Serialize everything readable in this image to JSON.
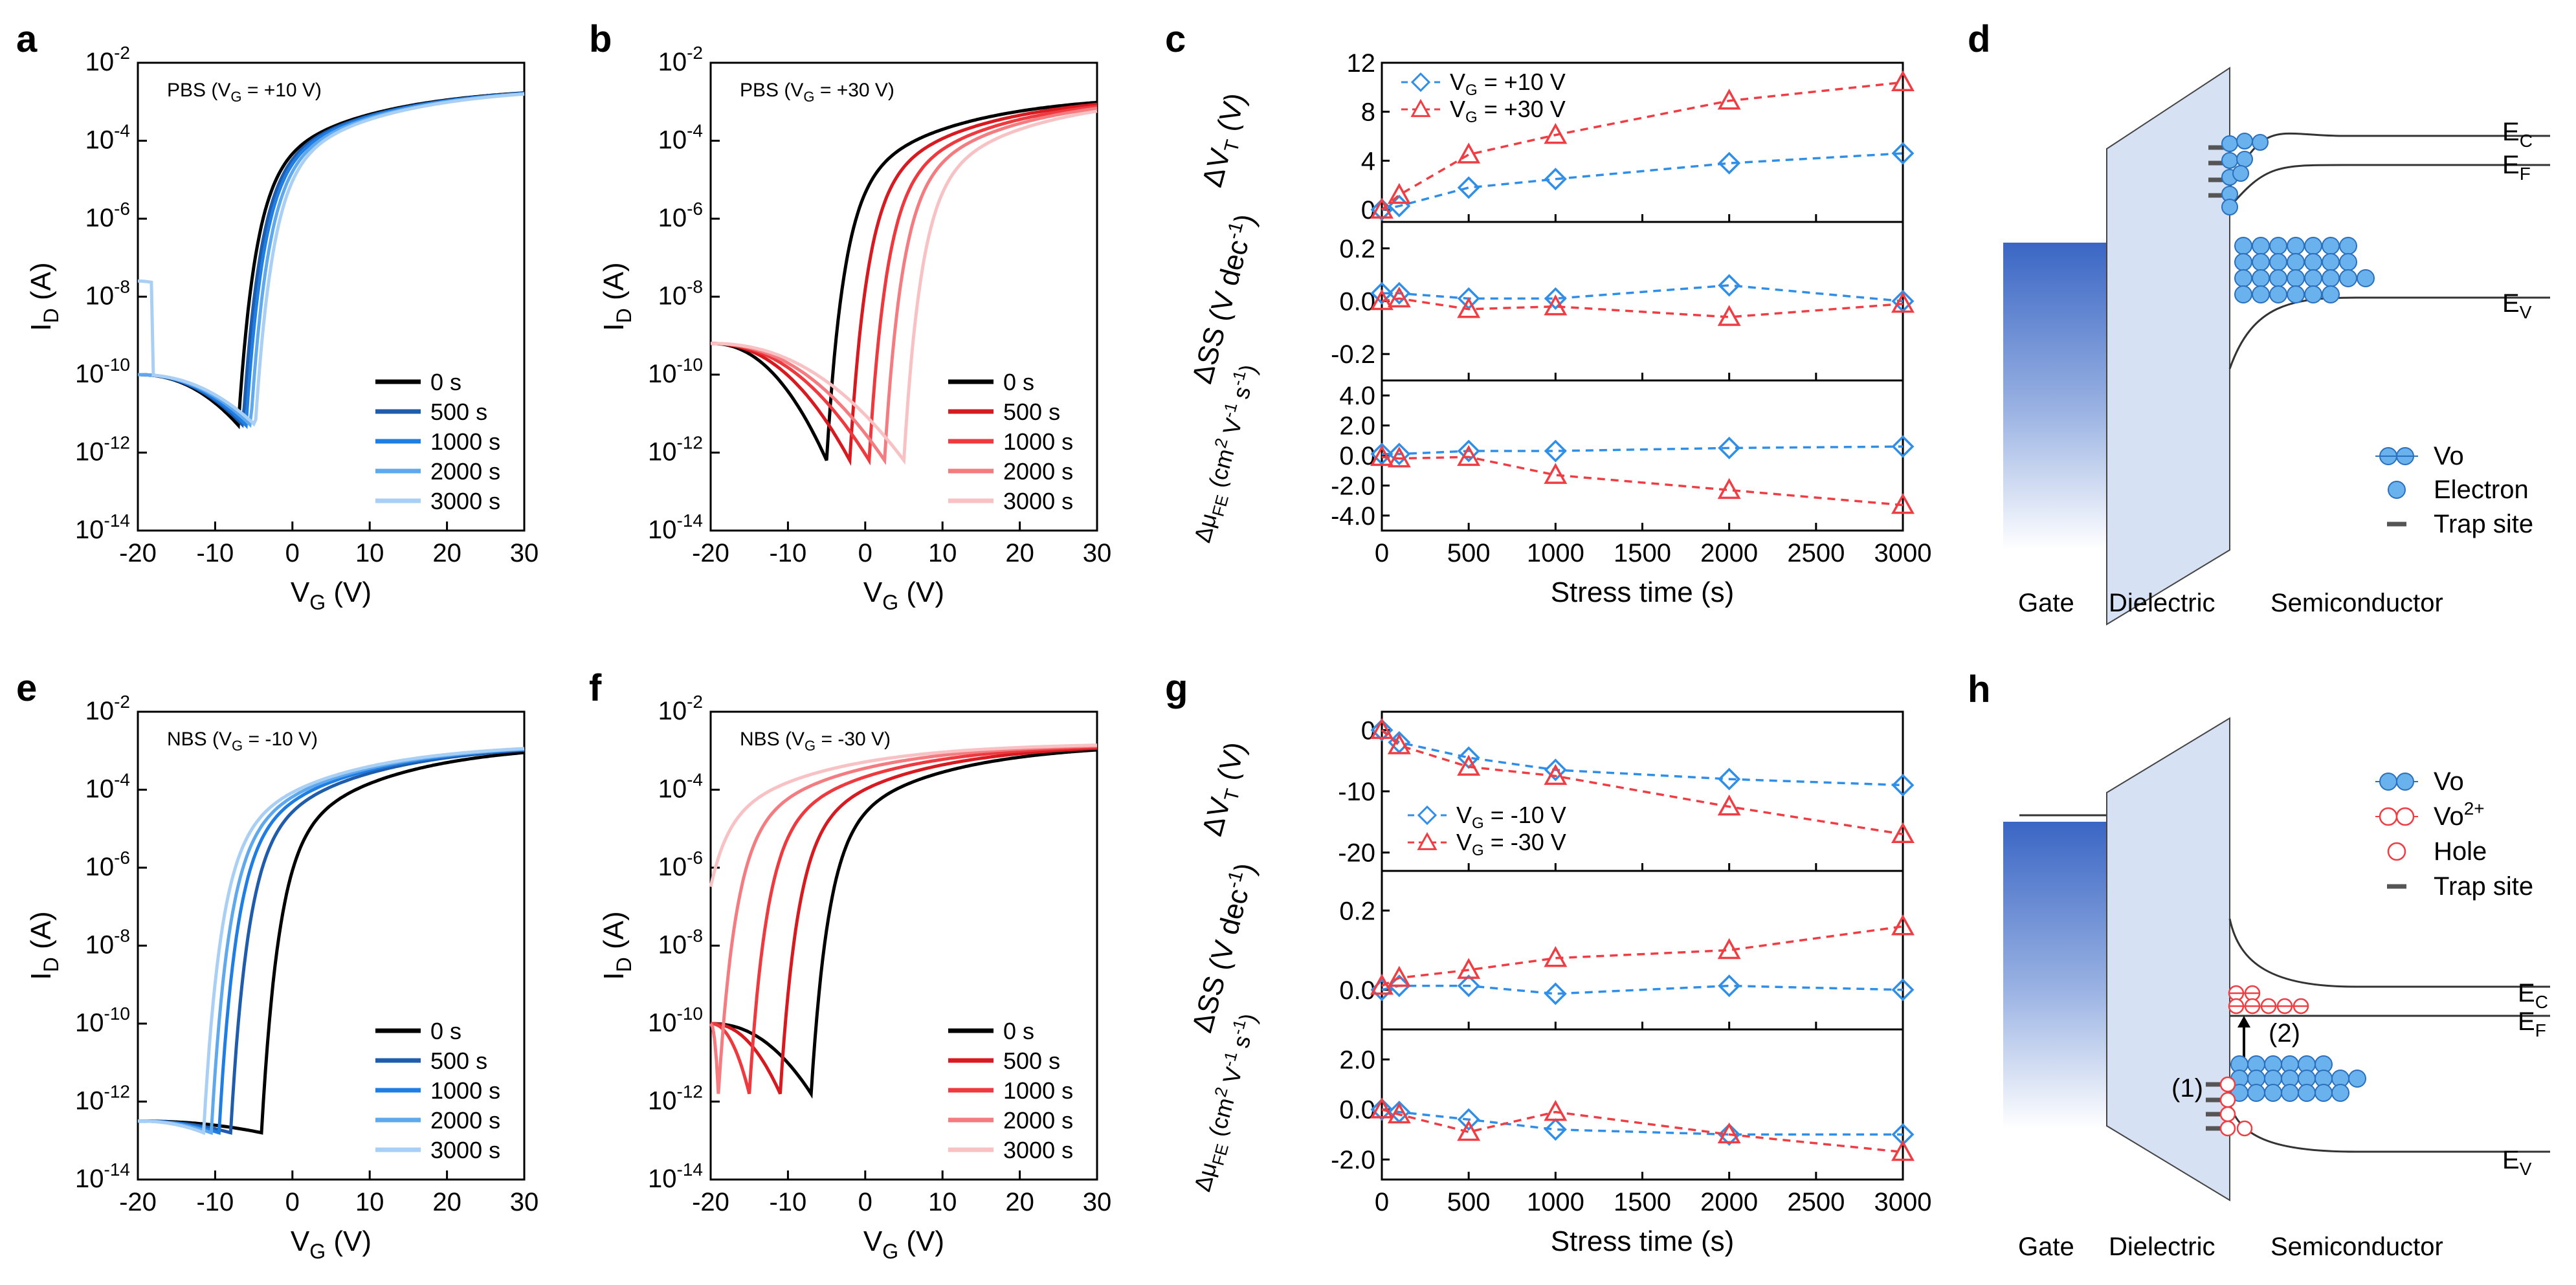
{
  "colors": {
    "black": "#000000",
    "blue_series": [
      "#1f5cab",
      "#1e7ee4",
      "#5ea8ee",
      "#a9cff5"
    ],
    "red_series": [
      "#d71920",
      "#ee3a3f",
      "#f47c80",
      "#f8c1c3"
    ],
    "blue_marker": "#2f8fe8",
    "red_marker": "#ef3d43",
    "dielectric": "#d6e1f4",
    "electron": "#6ab2ee",
    "gate_dark": "#3a66c4"
  },
  "chart_data": [
    {
      "id": "a",
      "letter": "a",
      "type": "line",
      "title": "PBS (VG = +10 V)",
      "annotation": {
        "pre": "PBS (V",
        "sub": "G",
        "post": " = +10 V)"
      },
      "xlabel": {
        "main": "V",
        "sub": "G",
        "suffix": " (V)"
      },
      "ylabel": {
        "main": "I",
        "sub": "D",
        "suffix": " (A)"
      },
      "yscale": "log",
      "xlim": [
        -20,
        30
      ],
      "ylim": [
        -14,
        -2
      ],
      "xticks": [
        "-20",
        "-10",
        "0",
        "10",
        "20",
        "30"
      ],
      "xtick_values": [
        -20,
        -10,
        0,
        10,
        20,
        30
      ],
      "yticks_base": "10",
      "yticks_exp": [
        "-2",
        "-4",
        "-6",
        "-8",
        "-10",
        "-12",
        "-14"
      ],
      "ytick_values": [
        -2,
        -4,
        -6,
        -8,
        -10,
        -12,
        -14
      ],
      "palette": "blue",
      "series": [
        {
          "name": "0 s",
          "vmin": -7,
          "shift": 0
        },
        {
          "name": "500 s",
          "vmin": -6.4,
          "shift": 0.6
        },
        {
          "name": "1000 s",
          "vmin": -6,
          "shift": 1.0
        },
        {
          "name": "2000 s",
          "vmin": -5.4,
          "shift": 1.6
        },
        {
          "name": "3000 s",
          "vmin": -4.8,
          "shift": 2.2
        }
      ],
      "curve": {
        "ymin": -11.3,
        "ymax": -2.6,
        "y_left": -10.0,
        "y_left2": -8.0
      }
    },
    {
      "id": "b",
      "letter": "b",
      "type": "line",
      "title": "PBS (VG = +30 V)",
      "annotation": {
        "pre": "PBS (V",
        "sub": "G",
        "post": " = +30 V)"
      },
      "xlabel": {
        "main": "V",
        "sub": "G",
        "suffix": " (V)"
      },
      "ylabel": {
        "main": "I",
        "sub": "D",
        "suffix": " (A)"
      },
      "yscale": "log",
      "xlim": [
        -20,
        30
      ],
      "ylim": [
        -14,
        -2
      ],
      "xticks": [
        "-20",
        "-10",
        "0",
        "10",
        "20",
        "30"
      ],
      "xtick_values": [
        -20,
        -10,
        0,
        10,
        20,
        30
      ],
      "yticks_base": "10",
      "yticks_exp": [
        "-2",
        "-4",
        "-6",
        "-8",
        "-10",
        "-12",
        "-14"
      ],
      "ytick_values": [
        -2,
        -4,
        -6,
        -8,
        -10,
        -12,
        -14
      ],
      "palette": "red",
      "series": [
        {
          "name": "0 s",
          "vmin": -5,
          "shift": 0
        },
        {
          "name": "500 s",
          "vmin": -2,
          "shift": 3
        },
        {
          "name": "1000 s",
          "vmin": 0.5,
          "shift": 5.5
        },
        {
          "name": "2000 s",
          "vmin": 2.5,
          "shift": 7.5
        },
        {
          "name": "3000 s",
          "vmin": 5,
          "shift": 10
        }
      ],
      "curve": {
        "ymin": -12.2,
        "ymax": -2.8,
        "y_left": -9.2,
        "y_left2": -9.2
      }
    },
    {
      "id": "e",
      "letter": "e",
      "type": "line",
      "title": "NBS (VG = -10 V)",
      "annotation": {
        "pre": "NBS (V",
        "sub": "G",
        "post": " = -10 V)"
      },
      "xlabel": {
        "main": "V",
        "sub": "G",
        "suffix": " (V)"
      },
      "ylabel": {
        "main": "I",
        "sub": "D",
        "suffix": " (A)"
      },
      "yscale": "log",
      "xlim": [
        -20,
        30
      ],
      "ylim": [
        -14,
        -2
      ],
      "xticks": [
        "-20",
        "-10",
        "0",
        "10",
        "20",
        "30"
      ],
      "xtick_values": [
        -20,
        -10,
        0,
        10,
        20,
        30
      ],
      "yticks_base": "10",
      "yticks_exp": [
        "-2",
        "-4",
        "-6",
        "-8",
        "-10",
        "-12",
        "-14"
      ],
      "ytick_values": [
        -2,
        -4,
        -6,
        -8,
        -10,
        -12,
        -14
      ],
      "palette": "blue",
      "series": [
        {
          "name": "0 s",
          "vmin": -4,
          "shift": 0
        },
        {
          "name": "500 s",
          "vmin": -8,
          "shift": -4
        },
        {
          "name": "1000 s",
          "vmin": -9.5,
          "shift": -5.5
        },
        {
          "name": "2000 s",
          "vmin": -10.5,
          "shift": -6.5
        },
        {
          "name": "3000 s",
          "vmin": -11.5,
          "shift": -7.5
        }
      ],
      "curve": {
        "ymin": -12.8,
        "ymax": -2.8,
        "y_left": -12.5,
        "y_left2": -12.5
      }
    },
    {
      "id": "f",
      "letter": "f",
      "type": "line",
      "title": "NBS (VG = -30 V)",
      "annotation": {
        "pre": "NBS (V",
        "sub": "G",
        "post": " = -30 V)"
      },
      "xlabel": {
        "main": "V",
        "sub": "G",
        "suffix": " (V)"
      },
      "ylabel": {
        "main": "I",
        "sub": "D",
        "suffix": " (A)"
      },
      "yscale": "log",
      "xlim": [
        -20,
        30
      ],
      "ylim": [
        -14,
        -2
      ],
      "xticks": [
        "-20",
        "-10",
        "0",
        "10",
        "20",
        "30"
      ],
      "xtick_values": [
        -20,
        -10,
        0,
        10,
        20,
        30
      ],
      "yticks_base": "10",
      "yticks_exp": [
        "-2",
        "-4",
        "-6",
        "-8",
        "-10",
        "-12",
        "-14"
      ],
      "ytick_values": [
        -2,
        -4,
        -6,
        -8,
        -10,
        -12,
        -14
      ],
      "palette": "red",
      "series": [
        {
          "name": "0 s",
          "vmin": -7,
          "shift": 0
        },
        {
          "name": "500 s",
          "vmin": -11,
          "shift": -4
        },
        {
          "name": "1000 s",
          "vmin": -15,
          "shift": -8
        },
        {
          "name": "2000 s",
          "vmin": -19,
          "shift": -12
        },
        {
          "name": "3000 s",
          "vmin": -23,
          "shift": -16
        }
      ],
      "curve": {
        "ymin": -11.8,
        "ymax": -2.8,
        "y_left": -10,
        "y_left2": -10
      }
    },
    {
      "id": "c",
      "letter": "c",
      "type": "scatter",
      "xlabel": "Stress time (s)",
      "xlim": [
        0,
        3000
      ],
      "xticks": [
        "0",
        "500",
        "1000",
        "1500",
        "2000",
        "2500",
        "3000"
      ],
      "xtick_values": [
        0,
        500,
        1000,
        1500,
        2000,
        2500,
        3000
      ],
      "x": [
        0,
        100,
        500,
        1000,
        2000,
        3000
      ],
      "subplots": [
        {
          "ylabel": {
            "pre": "ΔV",
            "sub": "T",
            "post": " (V)"
          },
          "ylim": [
            -1,
            12
          ],
          "yticks": [
            "12",
            "8",
            "4",
            "0"
          ],
          "ytick_values": [
            12,
            8,
            4,
            0
          ],
          "legend": [
            {
              "pre": "V",
              "sub": "G",
              "post": " = +10 V"
            },
            {
              "pre": "V",
              "sub": "G",
              "post": " = +30 V"
            }
          ],
          "series": [
            {
              "name": "VG = +10 V",
              "marker": "diamond",
              "values": [
                0,
                0.3,
                1.8,
                2.5,
                3.8,
                4.6
              ]
            },
            {
              "name": "VG = +30 V",
              "marker": "triangle",
              "values": [
                0,
                1.2,
                4.5,
                6.1,
                8.9,
                10.4
              ]
            }
          ]
        },
        {
          "ylabel": {
            "pre": "ΔSS (V dec",
            "sup": "-1",
            "post": ")"
          },
          "ylim": [
            -0.3,
            0.3
          ],
          "yticks": [
            "0.2",
            "0.0",
            "-0.2"
          ],
          "ytick_values": [
            0.2,
            0.0,
            -0.2
          ],
          "series": [
            {
              "name": "VG = +10 V",
              "marker": "diamond",
              "values": [
                0.03,
                0.03,
                0.01,
                0.01,
                0.06,
                0.0
              ]
            },
            {
              "name": "VG = +30 V",
              "marker": "triangle",
              "values": [
                0.0,
                0.01,
                -0.03,
                -0.02,
                -0.06,
                -0.01
              ]
            }
          ]
        },
        {
          "ylabel": {
            "pre": "Δμ",
            "sub": "FE",
            "post": " (cm",
            "sup": "2",
            "post2": " V",
            "sup2": "-1",
            "post3": " s",
            "sup3": "-1",
            "post4": ")"
          },
          "ylim": [
            -5,
            5
          ],
          "yticks": [
            "4.0",
            "2.0",
            "0.0",
            "-2.0",
            "-4.0"
          ],
          "ytick_values": [
            4,
            2,
            0,
            -2,
            -4
          ],
          "series": [
            {
              "name": "VG = +10 V",
              "marker": "diamond",
              "values": [
                0.1,
                0.1,
                0.3,
                0.3,
                0.5,
                0.6
              ]
            },
            {
              "name": "VG = +30 V",
              "marker": "triangle",
              "values": [
                -0.1,
                -0.2,
                -0.1,
                -1.3,
                -2.3,
                -3.3
              ]
            }
          ]
        }
      ]
    },
    {
      "id": "g",
      "letter": "g",
      "type": "scatter",
      "xlabel": "Stress time (s)",
      "xlim": [
        0,
        3000
      ],
      "xticks": [
        "0",
        "500",
        "1000",
        "1500",
        "2000",
        "2500",
        "3000"
      ],
      "xtick_values": [
        0,
        500,
        1000,
        1500,
        2000,
        2500,
        3000
      ],
      "x": [
        0,
        100,
        500,
        1000,
        2000,
        3000
      ],
      "subplots": [
        {
          "ylabel": {
            "pre": "ΔV",
            "sub": "T",
            "post": " (V)"
          },
          "ylim": [
            -23,
            3
          ],
          "yticks": [
            "0",
            "-10",
            "-20"
          ],
          "ytick_values": [
            0,
            -10,
            -20
          ],
          "legend": [
            {
              "pre": "V",
              "sub": "G",
              "post": " = -10 V"
            },
            {
              "pre": "V",
              "sub": "G",
              "post": " = -30 V"
            }
          ],
          "series": [
            {
              "name": "VG = -10 V",
              "marker": "diamond",
              "values": [
                0,
                -2,
                -4.5,
                -6.5,
                -8,
                -9
              ]
            },
            {
              "name": "VG = -30 V",
              "marker": "triangle",
              "values": [
                0,
                -2.5,
                -6,
                -7.5,
                -12.5,
                -17
              ]
            }
          ]
        },
        {
          "ylabel": {
            "pre": "ΔSS (V dec",
            "sup": "-1",
            "post": ")"
          },
          "ylim": [
            -0.1,
            0.3
          ],
          "yticks": [
            "0.2",
            "0.0"
          ],
          "ytick_values": [
            0.2,
            0.0
          ],
          "series": [
            {
              "name": "VG = -10 V",
              "marker": "diamond",
              "values": [
                0.0,
                0.01,
                0.01,
                -0.01,
                0.01,
                0.0
              ]
            },
            {
              "name": "VG = -30 V",
              "marker": "triangle",
              "values": [
                0.01,
                0.03,
                0.05,
                0.08,
                0.1,
                0.16
              ]
            }
          ]
        },
        {
          "ylabel": {
            "pre": "Δμ",
            "sub": "FE",
            "post": " (cm",
            "sup": "2",
            "post2": " V",
            "sup2": "-1",
            "post3": " s",
            "sup3": "-1",
            "post4": ")"
          },
          "ylim": [
            -2.8,
            3.2
          ],
          "yticks": [
            "2.0",
            "0.0",
            "-2.0"
          ],
          "ytick_values": [
            2,
            0,
            -2
          ],
          "series": [
            {
              "name": "VG = -10 V",
              "marker": "diamond",
              "values": [
                0,
                -0.1,
                -0.4,
                -0.8,
                -1.0,
                -1.0
              ]
            },
            {
              "name": "VG = -30 V",
              "marker": "triangle",
              "values": [
                0,
                -0.2,
                -0.9,
                -0.1,
                -1.0,
                -1.7
              ]
            }
          ]
        }
      ]
    }
  ],
  "diagrams": {
    "d": {
      "letter": "d",
      "labels": {
        "gate": "Gate",
        "dielectric": "Dielectric",
        "semiconductor": "Semiconductor"
      },
      "bands": [
        {
          "main": "E",
          "sub": "C"
        },
        {
          "main": "E",
          "sub": "F"
        },
        {
          "main": "E",
          "sub": "V"
        }
      ],
      "legend": [
        "Vo",
        "Electron",
        "Trap site"
      ]
    },
    "h": {
      "letter": "h",
      "labels": {
        "gate": "Gate",
        "dielectric": "Dielectric",
        "semiconductor": "Semiconductor"
      },
      "bands": [
        {
          "main": "E",
          "sub": "C"
        },
        {
          "main": "E",
          "sub": "F"
        },
        {
          "main": "E",
          "sub": "V"
        }
      ],
      "legend": [
        "Vo",
        "Vo2+",
        "Hole",
        "Trap site"
      ],
      "legend_vo2": {
        "main": "Vo",
        "sup": "2+"
      },
      "steps": [
        "(1)",
        "(2)"
      ]
    }
  }
}
